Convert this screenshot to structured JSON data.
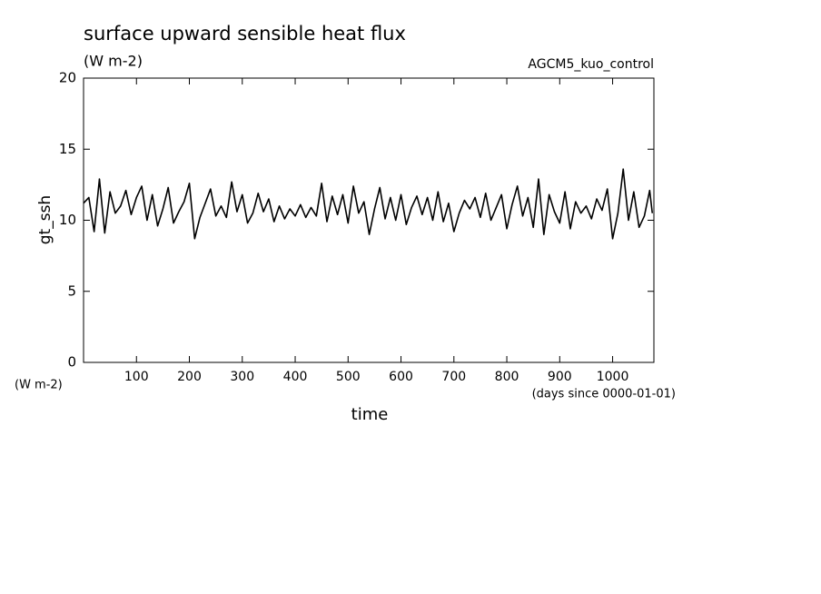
{
  "chart_data": {
    "type": "line",
    "title": "surface upward sensible heat flux",
    "subtitle": "(W m-2)",
    "annotation": "AGCM5_kuo_control",
    "y_label": "gt_ssh",
    "y_units": "(W m-2)",
    "x_label": "time",
    "x_units": "(days since 0000-01-01)",
    "xlim": [
      0,
      1078
    ],
    "ylim": [
      0,
      20
    ],
    "xticks": [
      100,
      200,
      300,
      400,
      500,
      600,
      700,
      800,
      900,
      1000
    ],
    "yticks": [
      0,
      5,
      10,
      15,
      20
    ],
    "x": [
      0,
      10,
      20,
      30,
      40,
      50,
      60,
      70,
      80,
      90,
      100,
      110,
      120,
      130,
      140,
      150,
      160,
      170,
      180,
      190,
      200,
      210,
      220,
      230,
      240,
      250,
      260,
      270,
      280,
      290,
      300,
      310,
      320,
      330,
      340,
      350,
      360,
      370,
      380,
      390,
      400,
      410,
      420,
      430,
      440,
      450,
      460,
      470,
      480,
      490,
      500,
      510,
      520,
      530,
      540,
      550,
      560,
      570,
      580,
      590,
      600,
      610,
      620,
      630,
      640,
      650,
      660,
      670,
      680,
      690,
      700,
      710,
      720,
      730,
      740,
      750,
      760,
      770,
      780,
      790,
      800,
      810,
      820,
      830,
      840,
      850,
      860,
      870,
      880,
      890,
      900,
      910,
      920,
      930,
      940,
      950,
      960,
      970,
      980,
      990,
      1000,
      1010,
      1020,
      1030,
      1040,
      1050,
      1060,
      1070,
      1075
    ],
    "series": [
      {
        "name": "gt_ssh",
        "color": "#000000",
        "values": [
          11.2,
          11.6,
          9.2,
          12.9,
          9.1,
          12.0,
          10.5,
          11.0,
          12.1,
          10.4,
          11.6,
          12.4,
          10.0,
          11.8,
          9.6,
          10.8,
          12.3,
          9.8,
          10.6,
          11.3,
          12.6,
          8.7,
          10.2,
          11.2,
          12.2,
          10.3,
          11.0,
          10.2,
          12.7,
          10.6,
          11.8,
          9.8,
          10.5,
          11.9,
          10.6,
          11.5,
          9.9,
          11.0,
          10.1,
          10.8,
          10.3,
          11.1,
          10.2,
          10.9,
          10.3,
          12.6,
          9.9,
          11.7,
          10.4,
          11.8,
          9.8,
          12.4,
          10.5,
          11.3,
          9.0,
          10.8,
          12.3,
          10.1,
          11.6,
          10.0,
          11.8,
          9.7,
          10.9,
          11.7,
          10.4,
          11.6,
          10.0,
          12.0,
          9.9,
          11.2,
          9.2,
          10.5,
          11.4,
          10.8,
          11.6,
          10.2,
          11.9,
          10.0,
          10.9,
          11.8,
          9.4,
          11.1,
          12.4,
          10.3,
          11.6,
          9.5,
          12.9,
          9.0,
          11.8,
          10.6,
          9.8,
          12.0,
          9.4,
          11.3,
          10.5,
          11.0,
          10.1,
          11.5,
          10.7,
          12.2,
          8.7,
          10.5,
          13.6,
          10.0,
          12.0,
          9.5,
          10.3,
          12.1,
          10.5
        ]
      }
    ]
  }
}
